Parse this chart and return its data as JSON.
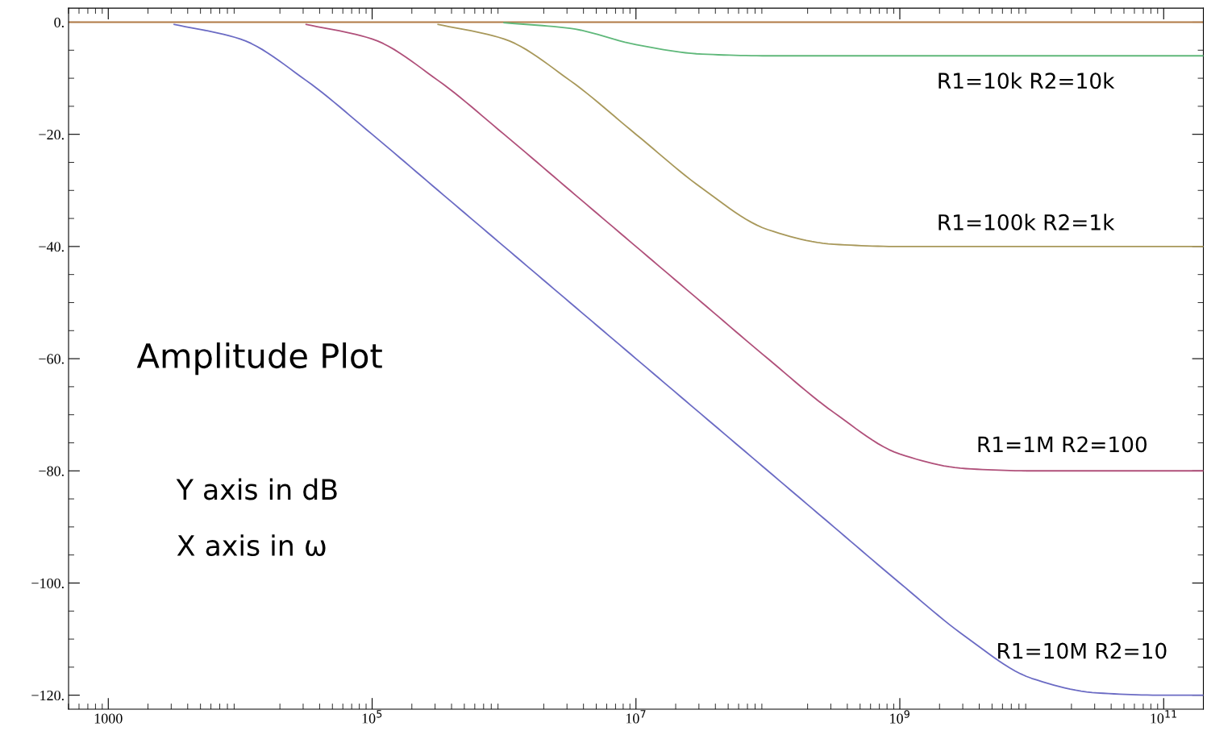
{
  "chart_data": {
    "type": "line",
    "log": "x",
    "x": [
      500,
      1000,
      3162,
      10000,
      31623,
      100000,
      316228,
      1000000,
      3162278,
      10000000,
      31622777,
      100000000,
      316227766,
      1000000000,
      3162277660,
      10000000000,
      31622776602,
      100000000000,
      200000000000
    ],
    "series": [
      {
        "name": "R1=10k R2=10k",
        "color": "#5fb87a",
        "values": [
          null,
          null,
          null,
          null,
          null,
          null,
          null,
          -0.1,
          -1.1,
          -4.0,
          -5.7,
          -6.0,
          -6.0,
          -6.0,
          -6.0,
          -6.0,
          -6.0,
          -6.0,
          -6.0
        ]
      },
      {
        "name": "R1=100k R2=1k",
        "color": "#a8985a",
        "values": [
          null,
          null,
          null,
          null,
          null,
          null,
          -0.4,
          -3.0,
          -10.4,
          -20.0,
          -29.6,
          -37.0,
          -39.6,
          -40.0,
          -40.0,
          -40.0,
          -40.0,
          -40.0,
          -40.0
        ]
      },
      {
        "name": "R1=1M R2=100",
        "color": "#b0507a",
        "values": [
          null,
          null,
          null,
          null,
          -0.4,
          -3.0,
          -10.4,
          -20.0,
          -30.0,
          -40.0,
          -50.0,
          -60.0,
          -69.6,
          -77.0,
          -79.6,
          -80.0,
          -80.0,
          -80.0,
          -80.0
        ]
      },
      {
        "name": "R1=10M R2=10",
        "color": "#6b6bc4",
        "values": [
          null,
          null,
          -0.4,
          -3.0,
          -10.4,
          -20.0,
          -30.0,
          -40.0,
          -50.0,
          -60.0,
          -70.0,
          -80.0,
          -90.0,
          -100.0,
          -109.6,
          -117.0,
          -119.6,
          -120.0,
          -120.0
        ]
      },
      {
        "color": "#b07a45",
        "values": [
          0,
          0,
          0,
          0,
          0,
          0,
          0,
          0,
          0,
          0,
          0,
          0,
          0,
          0,
          0,
          0,
          0,
          0,
          0
        ]
      }
    ],
    "xlim": [
      500,
      200000000000
    ],
    "xticks": [
      {
        "value": 1000,
        "label": "1000"
      },
      {
        "value": 100000,
        "label": "10$^{5}$"
      },
      {
        "value": 10000000,
        "label": "10$^{7}$"
      },
      {
        "value": 1000000000,
        "label": "10$^{9}$"
      },
      {
        "value": 100000000000,
        "label": "10$^{11}$"
      }
    ],
    "ylim": [
      -122.5,
      2.5
    ],
    "yticks": [
      {
        "value": 0,
        "label": "0."
      },
      {
        "value": -20,
        "label": "−20."
      },
      {
        "value": -40,
        "label": "−40."
      },
      {
        "value": -60,
        "label": "−60."
      },
      {
        "value": -80,
        "label": "−80."
      },
      {
        "value": -100,
        "label": "−100."
      },
      {
        "value": -120,
        "label": "−120."
      }
    ],
    "grid": false,
    "legend": false,
    "marker": "none",
    "line_style": "solid",
    "annotations": [
      "Amplitude Plot",
      "Y axis in dB",
      "X axis in ω"
    ]
  }
}
